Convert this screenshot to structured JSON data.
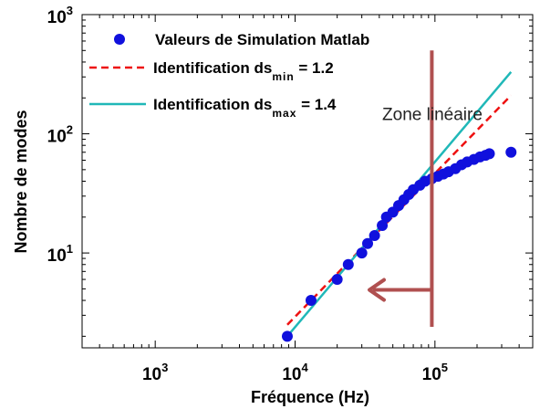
{
  "chart_data": {
    "type": "scatter",
    "xscale": "log",
    "yscale": "log",
    "xlim": [
      300,
      500000
    ],
    "ylim": [
      1.6,
      1000
    ],
    "xlabel": "Fréquence (Hz)",
    "ylabel": "Nombre de modes",
    "x_ticks": [
      {
        "value": 1000,
        "base": "10",
        "exp": "3"
      },
      {
        "value": 10000,
        "base": "10",
        "exp": "4"
      },
      {
        "value": 100000,
        "base": "10",
        "exp": "5"
      }
    ],
    "y_ticks": [
      {
        "value": 10,
        "base": "10",
        "exp": "1"
      },
      {
        "value": 100,
        "base": "10",
        "exp": "2"
      },
      {
        "value": 1000,
        "base": "10",
        "exp": "3"
      }
    ],
    "grid": false,
    "legend_position": "top-left",
    "series": [
      {
        "name": "Valeurs de Simulation Matlab",
        "kind": "scatter",
        "color": "#1010dd",
        "points": [
          [
            8800,
            2
          ],
          [
            13000,
            4
          ],
          [
            20000,
            6
          ],
          [
            24000,
            8
          ],
          [
            30000,
            10
          ],
          [
            33000,
            12
          ],
          [
            37000,
            14
          ],
          [
            42000,
            17
          ],
          [
            45000,
            20
          ],
          [
            50000,
            22
          ],
          [
            55000,
            25
          ],
          [
            60000,
            28
          ],
          [
            65000,
            31
          ],
          [
            70000,
            34
          ],
          [
            78000,
            37
          ],
          [
            85000,
            40
          ],
          [
            95000,
            42
          ],
          [
            105000,
            44
          ],
          [
            115000,
            46
          ],
          [
            125000,
            48
          ],
          [
            140000,
            51
          ],
          [
            155000,
            55
          ],
          [
            170000,
            58
          ],
          [
            190000,
            61
          ],
          [
            210000,
            64
          ],
          [
            230000,
            66
          ],
          [
            245000,
            68
          ],
          [
            350000,
            70
          ]
        ]
      },
      {
        "name_prefix": "Identification ds",
        "name_sub": "min",
        "name_suffix": " = 1.2",
        "kind": "line",
        "style": "dashed",
        "color": "#ee1111",
        "points": [
          [
            8800,
            2.5
          ],
          [
            350000,
            210
          ]
        ]
      },
      {
        "name_prefix": "Identification ds",
        "name_sub": "max",
        "name_suffix": " = 1.4",
        "kind": "line",
        "style": "solid",
        "color": "#20b8b8",
        "points": [
          [
            8800,
            2
          ],
          [
            350000,
            330
          ]
        ]
      }
    ],
    "annotations": {
      "text": "Zone linéaire",
      "text_position": [
        42000,
        130
      ],
      "vertical_line": {
        "x": 95000,
        "y_from": 2.4,
        "y_to": 500,
        "color": "#b05050"
      },
      "arrow": {
        "x_from": 95000,
        "x_to": 33000,
        "y": 4.9,
        "color": "#b05050"
      }
    }
  }
}
